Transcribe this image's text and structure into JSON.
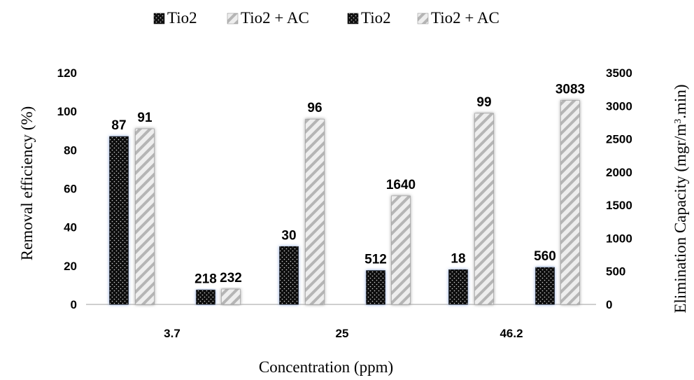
{
  "chart_data": {
    "type": "bar",
    "title": "",
    "xlabel": "Concentration (ppm)",
    "ylabel": "Removal efficiency (%)",
    "y2label_main": "Elimination Capacity (mgr/m",
    "y2label_sup": "3",
    "y2label_tail": ".min)",
    "categories": [
      "3.7",
      "25",
      "46.2"
    ],
    "ylim": [
      0,
      120
    ],
    "y2lim": [
      0,
      3500
    ],
    "yticks": [
      "0",
      "20",
      "40",
      "60",
      "80",
      "100",
      "120"
    ],
    "y2ticks": [
      "0",
      "500",
      "1000",
      "1500",
      "2000",
      "2500",
      "3000",
      "3500"
    ],
    "legend_position": "top",
    "series": [
      {
        "name": "Tio2",
        "axis": "left",
        "pattern": "dark",
        "values": [
          87,
          30,
          18
        ],
        "labels": [
          "87",
          "30",
          "18"
        ]
      },
      {
        "name": "Tio2 + AC",
        "axis": "left",
        "pattern": "light",
        "values": [
          91,
          96,
          99
        ],
        "labels": [
          "91",
          "96",
          "99"
        ]
      },
      {
        "name": "Tio2",
        "axis": "right",
        "pattern": "dark",
        "values": [
          218,
          512,
          560
        ],
        "labels": [
          "218",
          "512",
          "560"
        ]
      },
      {
        "name": "Tio2 + AC",
        "axis": "right",
        "pattern": "light",
        "values": [
          232,
          1640,
          3083
        ],
        "labels": [
          "232",
          "1640",
          "3083"
        ]
      }
    ],
    "colors": {
      "dark": "#111111",
      "light": "#d9d9d9",
      "glow": "#9fb6e0"
    }
  }
}
